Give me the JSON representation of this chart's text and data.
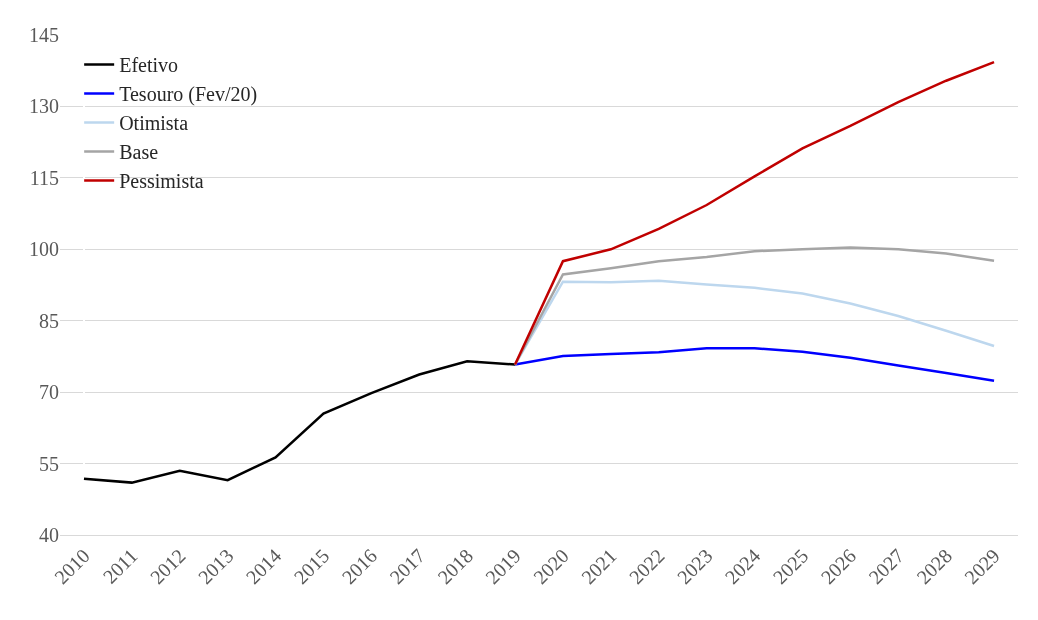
{
  "chart_data": {
    "type": "line",
    "categories": [
      "2010",
      "2011",
      "2012",
      "2013",
      "2014",
      "2015",
      "2016",
      "2017",
      "2018",
      "2019",
      "2020",
      "2021",
      "2022",
      "2023",
      "2024",
      "2025",
      "2026",
      "2027",
      "2028",
      "2029"
    ],
    "series": [
      {
        "name": "Efetivo",
        "color": "#000000",
        "values": [
          51.8,
          51.0,
          53.5,
          51.5,
          56.3,
          65.5,
          69.8,
          73.7,
          76.5,
          75.8,
          null,
          null,
          null,
          null,
          null,
          null,
          null,
          null,
          null,
          null
        ]
      },
      {
        "name": "Tesouro (Fev/20)",
        "color": "#0000ff",
        "values": [
          null,
          null,
          null,
          null,
          null,
          null,
          null,
          null,
          null,
          75.8,
          77.6,
          78.0,
          78.4,
          79.2,
          79.2,
          78.5,
          77.2,
          75.6,
          74.0,
          72.4
        ]
      },
      {
        "name": "Otimista",
        "color": "#bdd7ee",
        "values": [
          null,
          null,
          null,
          null,
          null,
          null,
          null,
          null,
          null,
          75.8,
          93.2,
          93.1,
          93.4,
          92.6,
          91.9,
          90.7,
          88.6,
          86.0,
          82.9,
          79.7
        ]
      },
      {
        "name": "Base",
        "color": "#a5a5a5",
        "values": [
          null,
          null,
          null,
          null,
          null,
          null,
          null,
          null,
          null,
          75.8,
          94.7,
          96.0,
          97.5,
          98.4,
          99.6,
          100.0,
          100.4,
          100.0,
          99.1,
          97.6
        ]
      },
      {
        "name": "Pessimista",
        "color": "#c00000",
        "values": [
          null,
          null,
          null,
          null,
          null,
          null,
          null,
          null,
          null,
          75.8,
          97.5,
          100.0,
          104.3,
          109.3,
          115.3,
          121.2,
          125.9,
          130.9,
          135.4,
          139.3
        ]
      }
    ],
    "ylim": [
      40,
      145
    ],
    "yticks": [
      40,
      55,
      70,
      85,
      100,
      115,
      130,
      145
    ],
    "grid": "y",
    "legend": "top left",
    "marker": "none",
    "line_style": "solid"
  }
}
